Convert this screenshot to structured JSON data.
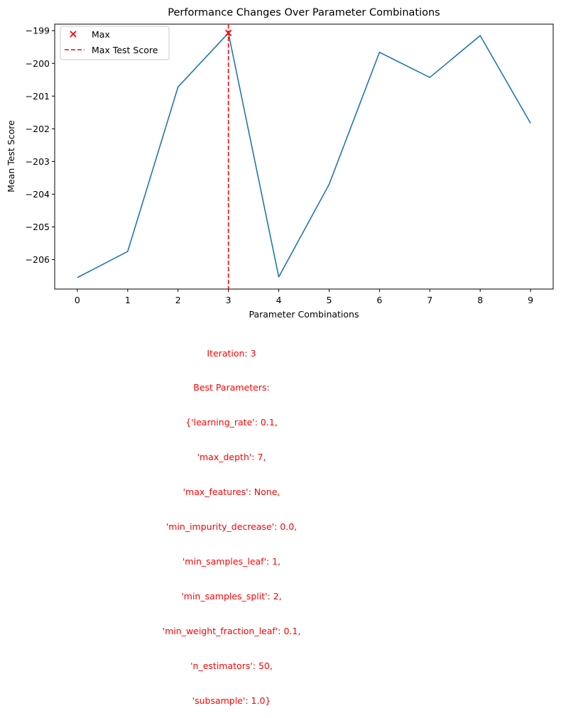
{
  "chart_data": {
    "type": "line",
    "title": "Performance Changes Over Parameter Combinations",
    "xlabel": "Parameter Combinations",
    "ylabel": "Mean Test Score",
    "x": [
      0,
      1,
      2,
      3,
      4,
      5,
      6,
      7,
      8,
      9
    ],
    "xlim": [
      -0.45,
      9.45
    ],
    "ylim": [
      -206.9,
      -198.8
    ],
    "yticks": [
      -199,
      -200,
      -201,
      -202,
      -203,
      -204,
      -205,
      -206
    ],
    "ytick_labels": [
      "−199",
      "−200",
      "−201",
      "−202",
      "−203",
      "−204",
      "−205",
      "−206"
    ],
    "xtick_labels": [
      "0",
      "1",
      "2",
      "3",
      "4",
      "5",
      "6",
      "7",
      "8",
      "9"
    ],
    "series": [
      {
        "values": [
          -206.55,
          -205.75,
          -200.72,
          -199.07,
          -206.53,
          -203.7,
          -199.66,
          -200.43,
          -199.15,
          -201.83
        ],
        "color": "#1f77b4"
      }
    ],
    "max_point": {
      "x": 3,
      "y": -199.07,
      "color": "#ff0000",
      "label": "Max"
    },
    "vline": {
      "x": 3,
      "color": "#ff0000",
      "label": "Max Test Score"
    },
    "legend": {
      "position": "top-left",
      "entries": [
        "Max",
        "Max Test Score"
      ]
    },
    "grid": false
  },
  "annotation": {
    "color": "#ff0000",
    "lines": [
      "Iteration: 3",
      "Best Parameters:",
      "{'learning_rate': 0.1,",
      "'max_depth': 7,",
      "'max_features': None,",
      "'min_impurity_decrease': 0.0,",
      "'min_samples_leaf': 1,",
      "'min_samples_split': 2,",
      "'min_weight_fraction_leaf': 0.1,",
      "'n_estimators': 50,",
      "'subsample': 1.0}"
    ]
  }
}
